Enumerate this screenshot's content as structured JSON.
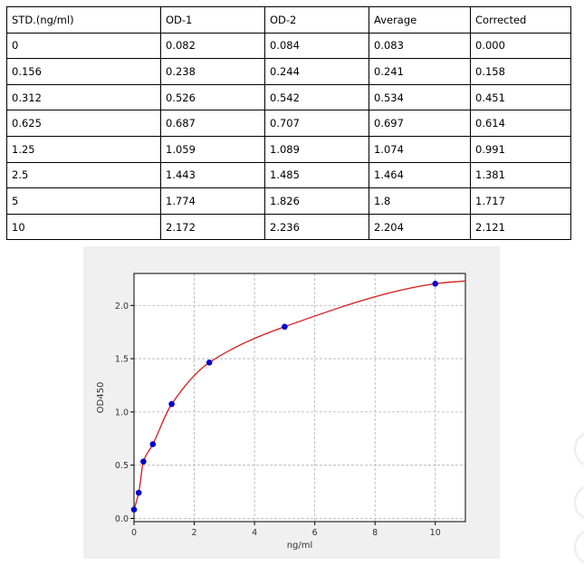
{
  "table": {
    "headers": [
      "STD.(ng/ml)",
      "OD-1",
      "OD-2",
      "Average",
      "Corrected"
    ],
    "rows": [
      [
        "0",
        "0.082",
        "0.084",
        "0.083",
        "0.000"
      ],
      [
        "0.156",
        "0.238",
        "0.244",
        "0.241",
        "0.158"
      ],
      [
        "0.312",
        "0.526",
        "0.542",
        "0.534",
        "0.451"
      ],
      [
        "0.625",
        "0.687",
        "0.707",
        "0.697",
        "0.614"
      ],
      [
        "1.25",
        "1.059",
        "1.089",
        "1.074",
        "0.991"
      ],
      [
        "2.5",
        "1.443",
        "1.485",
        "1.464",
        "1.381"
      ],
      [
        "5",
        "1.774",
        "1.826",
        "1.8",
        "1.717"
      ],
      [
        "10",
        "2.172",
        "2.236",
        "2.204",
        "2.121"
      ]
    ]
  },
  "chart_data": {
    "type": "scatter",
    "xlabel": "ng/ml",
    "ylabel": "OD450",
    "xlim": [
      0,
      11
    ],
    "ylim": [
      -0.03,
      2.3
    ],
    "xticks": [
      0,
      2,
      4,
      6,
      8,
      10
    ],
    "yticks": [
      0.0,
      0.5,
      1.0,
      1.5,
      2.0
    ],
    "xtick_labels": [
      "0",
      "2",
      "4",
      "6",
      "8",
      "10"
    ],
    "ytick_labels": [
      "0.0",
      "0.5",
      "1.0",
      "1.5",
      "2.0"
    ],
    "grid": true,
    "series": [
      {
        "kind": "points",
        "color": "#0000cc",
        "x": [
          0,
          0.156,
          0.312,
          0.625,
          1.25,
          2.5,
          5,
          10
        ],
        "y": [
          0.083,
          0.241,
          0.534,
          0.697,
          1.074,
          1.464,
          1.8,
          2.204
        ]
      },
      {
        "kind": "fit-curve",
        "color": "#d62728",
        "x": [
          0,
          0.156,
          0.312,
          0.625,
          1.25,
          2.5,
          5,
          10,
          11
        ],
        "y": [
          0.083,
          0.241,
          0.534,
          0.697,
          1.074,
          1.464,
          1.8,
          2.204,
          2.23
        ]
      }
    ]
  },
  "colors": {
    "panel_background": "#f0f0f0",
    "plot_background": "#ffffff",
    "grid": "#b0b0b0",
    "points": "#0000cc",
    "curve": "#d62728"
  }
}
